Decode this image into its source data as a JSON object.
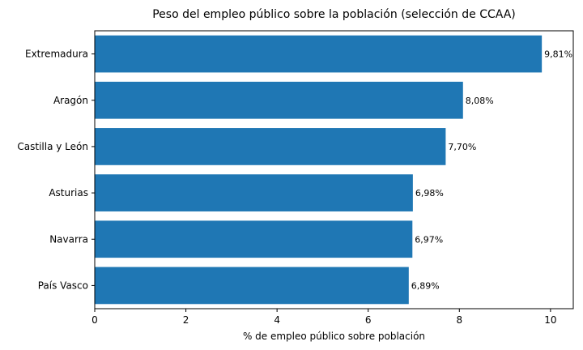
{
  "chart_data": {
    "type": "bar",
    "orientation": "horizontal",
    "title": "Peso del empleo público sobre la población (selección de CCAA)",
    "xlabel": "% de empleo público sobre población",
    "ylabel": "",
    "categories": [
      "Extremadura",
      "Aragón",
      "Castilla y León",
      "Asturias",
      "Navarra",
      "País Vasco"
    ],
    "values": [
      9.81,
      8.08,
      7.7,
      6.98,
      6.97,
      6.89
    ],
    "data_labels": [
      "9,81%",
      "8,08%",
      "7,70%",
      "6,98%",
      "6,97%",
      "6,89%"
    ],
    "xlim": [
      0,
      10.5
    ],
    "xticks": [
      0,
      2,
      4,
      6,
      8,
      10
    ],
    "xtick_labels": [
      "0",
      "2",
      "4",
      "6",
      "8",
      "10"
    ],
    "grid": false,
    "bar_color": "#1f77b4"
  }
}
